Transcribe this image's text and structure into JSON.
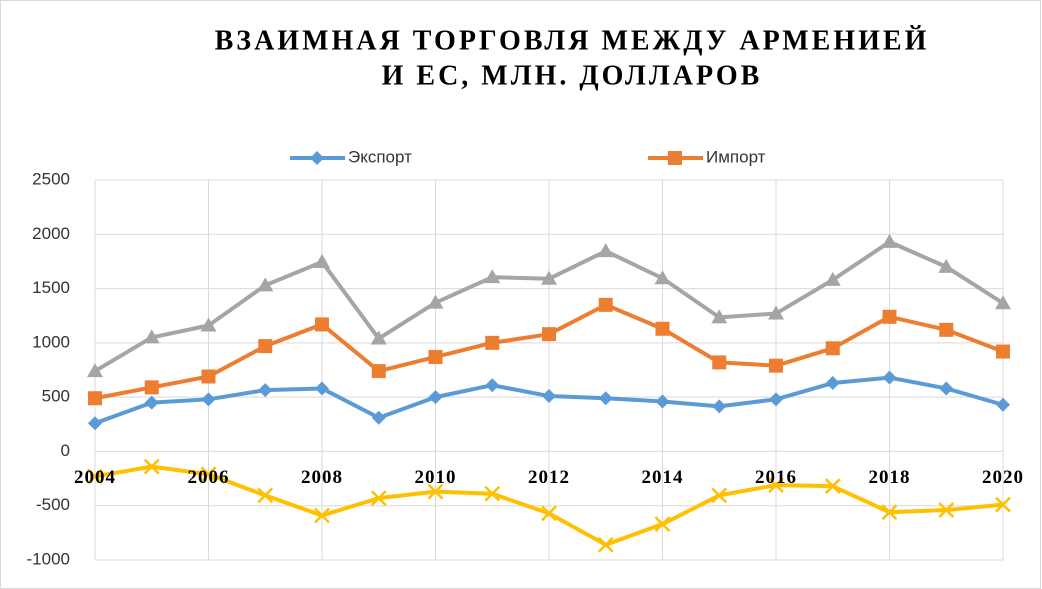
{
  "chart_data": {
    "type": "line",
    "title": [
      "ВЗАИМНАЯ ТОРГОВЛЯ МЕЖДУ АРМЕНИЕЙ",
      "И ЕС, МЛН. ДОЛЛАРОВ"
    ],
    "categories": [
      "2004",
      null,
      "2006",
      null,
      "2008",
      null,
      "2010",
      null,
      "2012",
      null,
      "2014",
      null,
      "2016",
      null,
      "2018",
      null,
      "2020"
    ],
    "series": [
      {
        "name": "Экспорт",
        "color": "#5b9bd5",
        "marker": "diamond",
        "values": [
          260,
          450,
          480,
          565,
          580,
          310,
          500,
          610,
          510,
          490,
          460,
          415,
          480,
          630,
          680,
          580,
          430
        ]
      },
      {
        "name": "Импорт",
        "color": "#ed7d31",
        "marker": "square",
        "values": [
          490,
          590,
          690,
          970,
          1170,
          740,
          870,
          1000,
          1080,
          1350,
          1130,
          820,
          790,
          950,
          1240,
          1120,
          920
        ]
      },
      {
        "color": "#a5a5a5",
        "marker": "triangle",
        "values": [
          740,
          1050,
          1160,
          1530,
          1745,
          1040,
          1370,
          1605,
          1590,
          1845,
          1595,
          1235,
          1270,
          1580,
          1930,
          1700,
          1365
        ]
      },
      {
        "color": "#ffc000",
        "marker": "x",
        "values": [
          -230,
          -140,
          -210,
          -405,
          -590,
          -430,
          -370,
          -390,
          -570,
          -860,
          -670,
          -405,
          -310,
          -320,
          -560,
          -540,
          -490
        ]
      }
    ],
    "ylim": [
      -1000,
      2500
    ],
    "yticks": [
      -1000,
      -500,
      0,
      500,
      1000,
      1500,
      2000,
      2500
    ],
    "grid": true,
    "legend": "top"
  }
}
